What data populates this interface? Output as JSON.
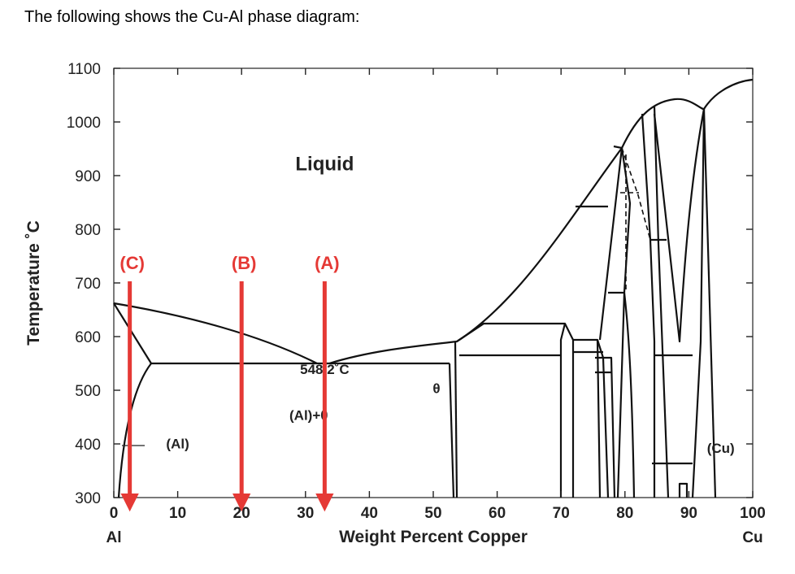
{
  "heading": "The following shows the Cu-Al phase diagram:",
  "chart_data": {
    "type": "phase-diagram",
    "ylabel": "Temperature ˚C",
    "xlabel": "Weight Percent Copper",
    "xlim": [
      0,
      100
    ],
    "ylim": [
      300,
      1100
    ],
    "x_ticks": [
      "0",
      "10",
      "20",
      "30",
      "40",
      "50",
      "60",
      "70",
      "80",
      "90",
      "100"
    ],
    "y_ticks": [
      "300",
      "400",
      "500",
      "600",
      "700",
      "800",
      "900",
      "1000",
      "1100"
    ],
    "x_end_labels": {
      "left": "Al",
      "right": "Cu"
    },
    "regions": [
      {
        "label": "Liquid",
        "x": 33,
        "y": 910
      },
      {
        "label": "(Al)+θ",
        "x": 30.5,
        "y": 445
      },
      {
        "label": "θ",
        "x": 50.5,
        "y": 495
      },
      {
        "label": "(Al)",
        "x": 10,
        "y": 392
      },
      {
        "label": "(Cu)",
        "x": 95,
        "y": 383
      }
    ],
    "annotations": [
      {
        "label": "548.2˚C",
        "x": 33,
        "y": 530
      }
    ],
    "key_points": {
      "al_melting": {
        "x": 0,
        "y": 660
      },
      "eutectic": {
        "x": 33,
        "y": 548.2
      },
      "cu_melting": {
        "x": 100,
        "y": 1085
      }
    },
    "compositions": [
      {
        "label": "(A)",
        "x": 33
      },
      {
        "label": "(B)",
        "x": 20
      },
      {
        "label": "(C)",
        "x": 2.5
      }
    ],
    "arrow_color": "#e53935"
  }
}
